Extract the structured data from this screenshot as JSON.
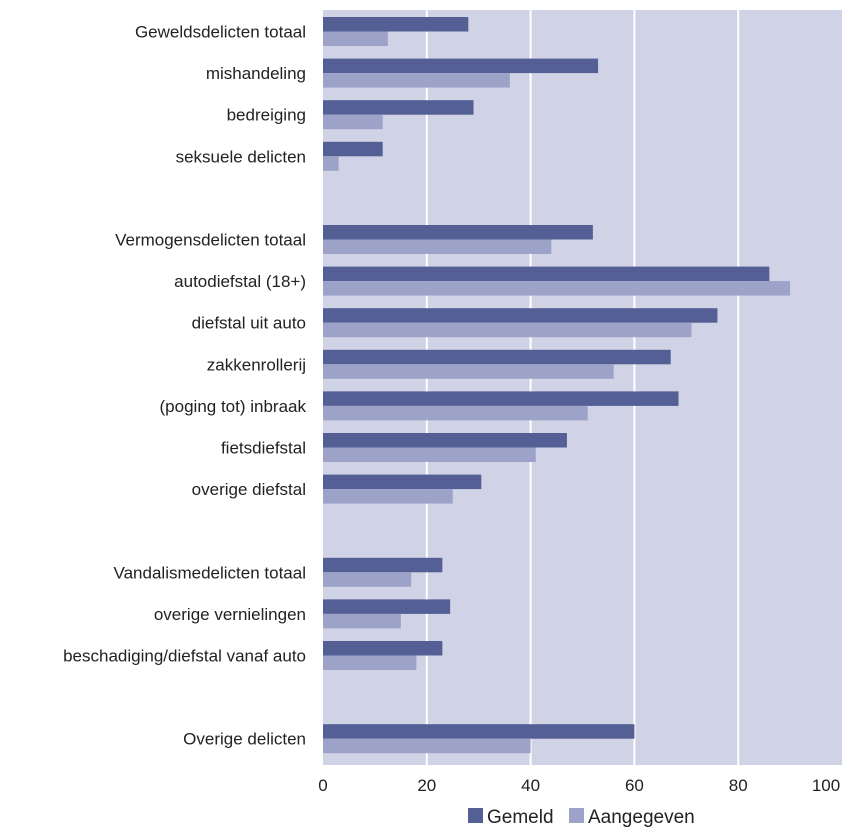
{
  "chart_data": {
    "type": "bar",
    "orientation": "horizontal",
    "categories": [
      "Geweldsdelicten totaal",
      "mishandeling",
      "bedreiging",
      "seksuele delicten",
      "",
      "Vermogensdelicten totaal",
      "autodiefstal (18+)",
      "diefstal uit auto",
      "zakkenrollerij",
      "(poging tot) inbraak",
      "fietsdiefstal",
      "overige diefstal",
      "",
      "Vandalismedelicten totaal",
      "overige vernielingen",
      "beschadiging/diefstal vanaf auto",
      "",
      "Overige delicten"
    ],
    "series": [
      {
        "name": "Gemeld",
        "color": "#535f95",
        "values": [
          28,
          53,
          29,
          11.5,
          null,
          52,
          86,
          76,
          67,
          68.5,
          47,
          30.5,
          null,
          23,
          24.5,
          23,
          null,
          60
        ]
      },
      {
        "name": "Aangegeven",
        "color": "#9da3c8",
        "values": [
          12.5,
          36,
          11.5,
          3,
          null,
          44,
          90,
          71,
          56,
          51,
          41,
          25,
          null,
          17,
          15,
          18,
          null,
          40
        ]
      }
    ],
    "xlim": [
      0,
      100
    ],
    "xticks": [
      "0",
      "20",
      "40",
      "60",
      "80",
      "100"
    ],
    "grid": true,
    "background_color": "#d0d3e5",
    "legend_position": "bottom",
    "title": "",
    "xlabel": "",
    "ylabel": ""
  }
}
